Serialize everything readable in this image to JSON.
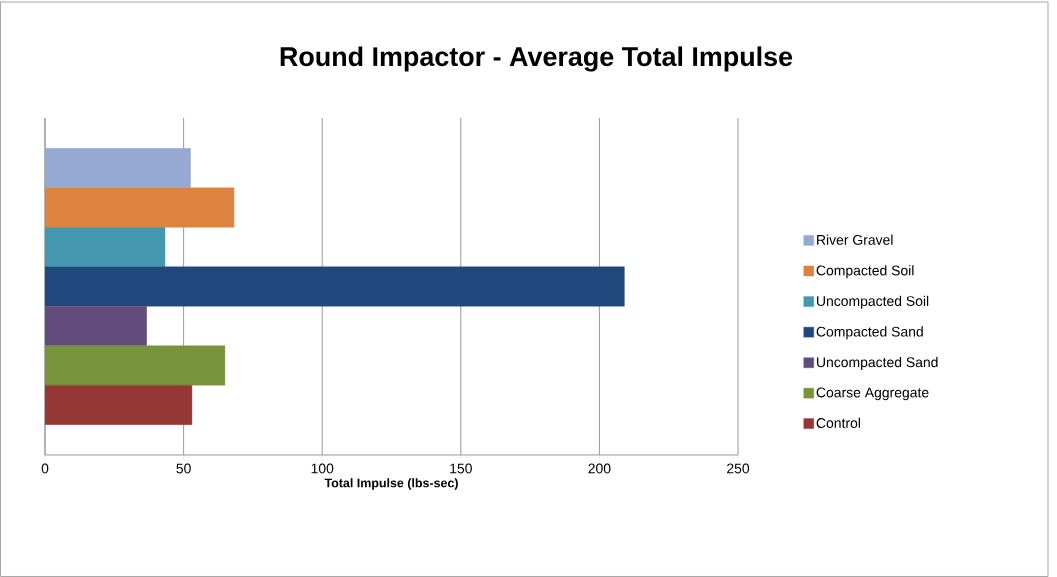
{
  "chart_data": {
    "type": "bar",
    "orientation": "horizontal",
    "title": "Round Impactor - Average Total Impulse",
    "xlabel": "Total Impulse (lbs-sec)",
    "categories": [
      null
    ],
    "series": [
      {
        "name": "River Gravel",
        "color": "#95a9d2",
        "values": [
          52.5
        ]
      },
      {
        "name": "Compacted Soil",
        "color": "#dc843f",
        "values": [
          68.2
        ]
      },
      {
        "name": "Uncompacted Soil",
        "color": "#4398b0",
        "values": [
          43.3
        ]
      },
      {
        "name": "Compacted Sand",
        "color": "#1f497d",
        "values": [
          209
        ]
      },
      {
        "name": "Uncompacted Sand",
        "color": "#624c7c",
        "values": [
          36.7
        ]
      },
      {
        "name": "Coarse Aggregate",
        "color": "#77933c",
        "values": [
          64.9
        ]
      },
      {
        "name": "Control",
        "color": "#953735",
        "values": [
          53
        ]
      }
    ],
    "xlim": [
      0,
      250
    ],
    "xticks": [
      0,
      50,
      100,
      150,
      200,
      250
    ],
    "grid": "x",
    "legend": "right"
  }
}
